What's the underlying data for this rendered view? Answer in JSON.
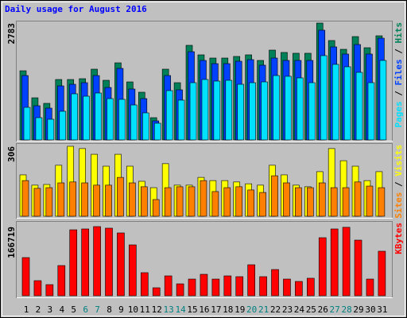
{
  "chart_data": [
    {
      "type": "bar",
      "title": "Daily usage for August 2016",
      "ylim": [
        0,
        2783
      ],
      "yticks": [
        2783
      ],
      "legend_separator": " / ",
      "series": [
        {
          "name": "Hits",
          "color": "#008058",
          "values": [
            1647,
            1003,
            871,
            1439,
            1439,
            1458,
            1685,
            1420,
            1836,
            1382,
            1136,
            530,
            1685,
            1363,
            2253,
            2026,
            1950,
            1950,
            1988,
            2026,
            1893,
            2139,
            2083,
            2064,
            2064,
            2783,
            2367,
            2158,
            2461,
            2196,
            2480
          ]
        },
        {
          "name": "Files",
          "color": "#0040ff",
          "values": [
            1533,
            814,
            757,
            1287,
            1325,
            1363,
            1533,
            1249,
            1704,
            1212,
            984,
            454,
            1533,
            1193,
            2101,
            1893,
            1817,
            1817,
            1874,
            1912,
            1780,
            1950,
            1893,
            1893,
            1893,
            2613,
            2215,
            2045,
            2272,
            2045,
            2423
          ]
        },
        {
          "name": "Pages",
          "color": "#00e0ff",
          "values": [
            776,
            530,
            492,
            682,
            1098,
            1041,
            1117,
            984,
            966,
            833,
            644,
            398,
            1174,
            947,
            1363,
            1439,
            1401,
            1420,
            1325,
            1363,
            1382,
            1533,
            1515,
            1477,
            1363,
            2007,
            1799,
            1742,
            1609,
            1363,
            1893
          ]
        }
      ]
    },
    {
      "type": "bar",
      "ylim": [
        0,
        306
      ],
      "yticks": [
        306
      ],
      "legend_separator": " / ",
      "series": [
        {
          "name": "Visits",
          "color": "#ffff00",
          "values": [
            181,
            136,
            139,
            223,
            306,
            296,
            271,
            219,
            271,
            219,
            153,
            125,
            230,
            136,
            136,
            170,
            156,
            156,
            150,
            142,
            136,
            223,
            181,
            136,
            129,
            195,
            296,
            243,
            219,
            156,
            195
          ]
        },
        {
          "name": "Sites",
          "color": "#ff8000",
          "values": [
            156,
            122,
            125,
            146,
            150,
            146,
            136,
            136,
            170,
            146,
            129,
            73,
            125,
            129,
            129,
            156,
            108,
            125,
            129,
            115,
            104,
            177,
            146,
            125,
            125,
            146,
            125,
            125,
            150,
            132,
            125
          ]
        }
      ]
    },
    {
      "type": "bar",
      "ylim": [
        0,
        166719
      ],
      "yticks": [
        166719
      ],
      "categories": [
        "1",
        "2",
        "3",
        "4",
        "5",
        "6",
        "7",
        "8",
        "9",
        "10",
        "11",
        "12",
        "13",
        "14",
        "15",
        "16",
        "17",
        "18",
        "19",
        "20",
        "21",
        "22",
        "23",
        "24",
        "25",
        "26",
        "27",
        "28",
        "29",
        "30",
        "31"
      ],
      "category_colors": [
        "#000000",
        "#000000",
        "#000000",
        "#000000",
        "#000000",
        "#008080",
        "#008080",
        "#000000",
        "#000000",
        "#000000",
        "#000000",
        "#000000",
        "#008080",
        "#008080",
        "#000000",
        "#000000",
        "#000000",
        "#000000",
        "#000000",
        "#008080",
        "#008080",
        "#000000",
        "#000000",
        "#000000",
        "#000000",
        "#000000",
        "#008080",
        "#008080",
        "#000000",
        "#000000",
        "#000000"
      ],
      "series": [
        {
          "name": "KBytes",
          "color": "#ff0000",
          "values": [
            92000,
            36400,
            26800,
            72800,
            159000,
            161000,
            166719,
            162900,
            151400,
            122600,
            55600,
            19200,
            47900,
            28700,
            40200,
            51700,
            40200,
            47900,
            46000,
            74700,
            46000,
            63200,
            40200,
            34500,
            42200,
            139900,
            161000,
            165000,
            134100,
            40200,
            107300
          ]
        }
      ]
    }
  ]
}
